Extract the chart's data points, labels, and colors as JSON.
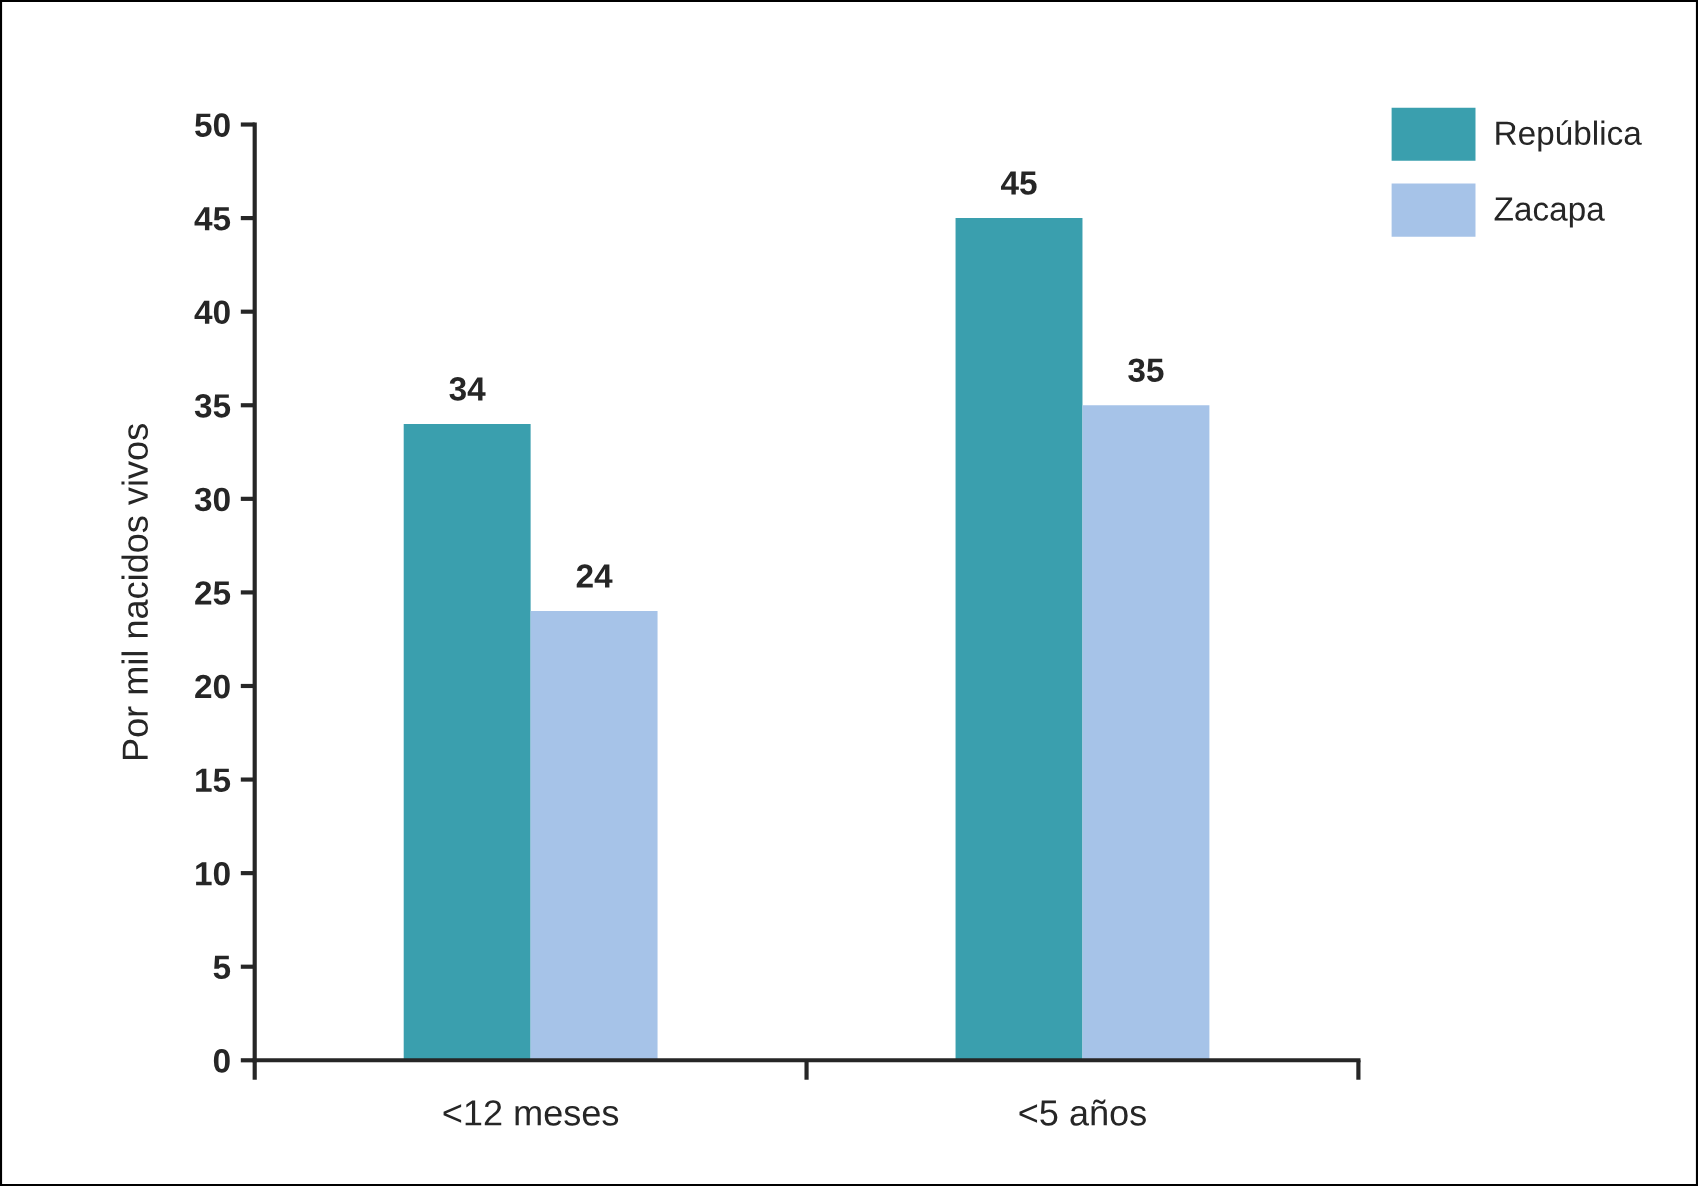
{
  "chart_data": {
    "type": "bar",
    "categories": [
      "<12 meses",
      "<5 años"
    ],
    "series": [
      {
        "name": "República",
        "color": "#3a9fae",
        "values": [
          34,
          45
        ]
      },
      {
        "name": "Zacapa",
        "color": "#a6c3e8",
        "values": [
          24,
          35
        ]
      }
    ],
    "ylabel": "Por mil nacidos vivos",
    "ylim": [
      0,
      50
    ],
    "yticks": [
      0,
      5,
      10,
      15,
      20,
      25,
      30,
      35,
      40,
      45,
      50
    ],
    "data_labels": true,
    "grid": false,
    "legend": "top right"
  }
}
